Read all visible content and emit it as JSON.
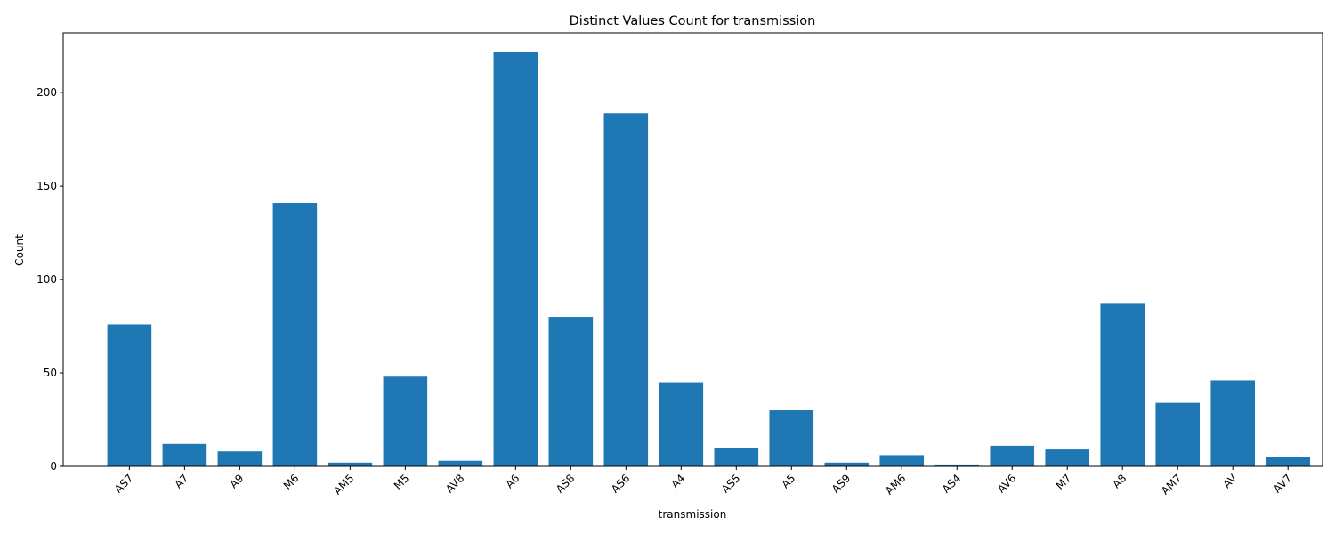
{
  "chart_data": {
    "type": "bar",
    "title": "Distinct Values Count for transmission",
    "xlabel": "transmission",
    "ylabel": "Count",
    "ylim": [
      0,
      232
    ],
    "yticks": [
      0,
      50,
      100,
      150,
      200
    ],
    "grid": false,
    "bar_color": "#1f77b4",
    "categories": [
      "AS7",
      "A7",
      "A9",
      "M6",
      "AM5",
      "M5",
      "AV8",
      "A6",
      "AS8",
      "AS6",
      "A4",
      "AS5",
      "A5",
      "AS9",
      "AM6",
      "AS4",
      "AV6",
      "M7",
      "A8",
      "AM7",
      "AV",
      "AV7"
    ],
    "values": [
      76,
      12,
      8,
      141,
      2,
      48,
      3,
      222,
      80,
      189,
      45,
      10,
      30,
      2,
      6,
      1,
      11,
      9,
      87,
      34,
      46,
      5
    ]
  }
}
